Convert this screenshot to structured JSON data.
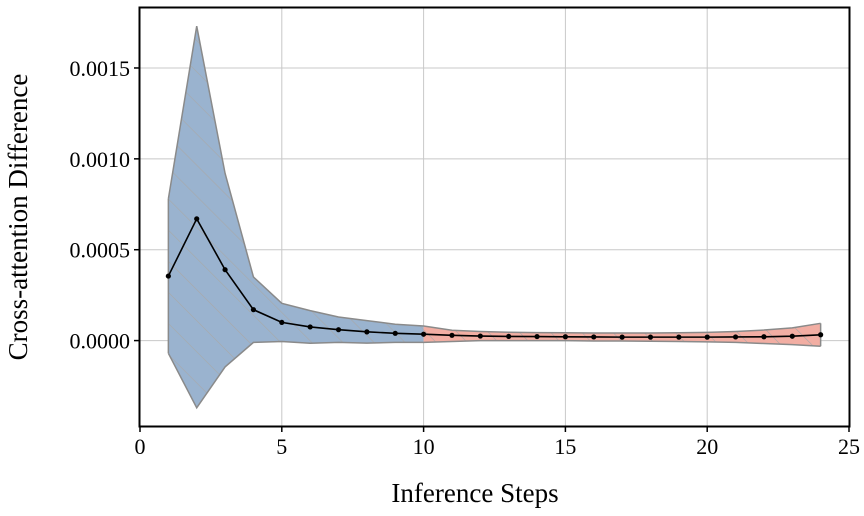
{
  "chart_data": {
    "type": "line",
    "xlabel": "Inference Steps",
    "ylabel": "Cross-attention Difference",
    "xlim": [
      0,
      25
    ],
    "ylim": [
      -0.00047,
      0.00183
    ],
    "x_ticks": [
      0,
      5,
      10,
      15,
      20,
      25
    ],
    "y_ticks": [
      0.0,
      0.0005,
      0.001,
      0.0015
    ],
    "x_tick_labels": [
      "0",
      "5",
      "10",
      "15",
      "20",
      "25"
    ],
    "y_tick_labels": [
      "0.0000",
      "0.0005",
      "0.0010",
      "0.0015"
    ],
    "grid": true,
    "series": [
      {
        "x": [
          1,
          2,
          3,
          4,
          5,
          6,
          7,
          8,
          9,
          10,
          11,
          12,
          13,
          14,
          15,
          16,
          17,
          18,
          19,
          20,
          21,
          22,
          23,
          24
        ],
        "values": [
          0.000355,
          0.00067,
          0.00039,
          0.00017,
          0.0001,
          7.5e-05,
          6e-05,
          4.8e-05,
          4e-05,
          3.5e-05,
          2.9e-05,
          2.5e-05,
          2.3e-05,
          2.2e-05,
          2.1e-05,
          2e-05,
          1.9e-05,
          1.9e-05,
          1.9e-05,
          1.9e-05,
          2e-05,
          2.1e-05,
          2.4e-05,
          3.2e-05
        ],
        "upper": [
          0.00078,
          0.00173,
          0.00092,
          0.00035,
          0.000205,
          0.000165,
          0.00013,
          0.00011,
          9e-05,
          8e-05,
          5.7e-05,
          5e-05,
          4.6e-05,
          4.4e-05,
          4.3e-05,
          4.2e-05,
          4.2e-05,
          4.2e-05,
          4.3e-05,
          4.5e-05,
          5e-05,
          5.8e-05,
          7e-05,
          9.5e-05
        ],
        "lower": [
          -7e-05,
          -0.00037,
          -0.000145,
          -1e-05,
          -5e-06,
          -1.5e-05,
          -1e-05,
          -1.4e-05,
          -1e-05,
          -1e-05,
          -5e-06,
          0.0,
          0.0,
          0.0,
          0.0,
          -2e-06,
          -2e-06,
          -4e-06,
          -5e-06,
          -7e-06,
          -1e-05,
          -1.6e-05,
          -2.2e-05,
          -3.1e-05
        ]
      }
    ],
    "bands": [
      {
        "x_from": 1,
        "x_to": 10,
        "color": "#9ab3cf"
      },
      {
        "x_from": 10,
        "x_to": 24,
        "color": "#f2aea3"
      }
    ],
    "colors": {
      "line": "#000000",
      "band_edge": "#8a8a8a",
      "hatch": "#a8a8a8",
      "grid": "#c8c8c8"
    }
  }
}
